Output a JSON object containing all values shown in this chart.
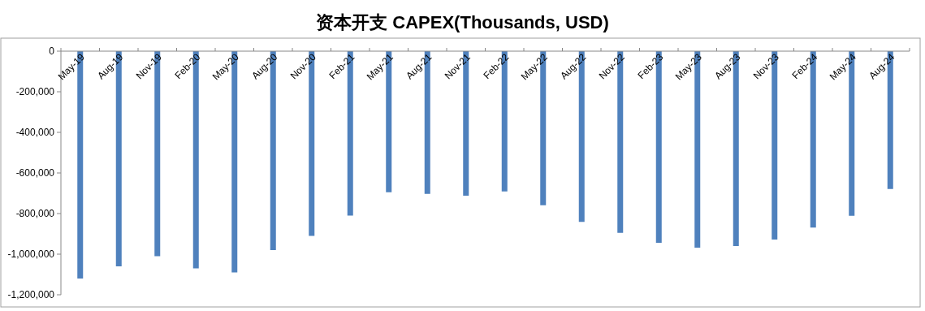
{
  "chart_data": {
    "type": "bar",
    "title": "资本开支 CAPEX(Thousands, USD)",
    "categories": [
      "May-19",
      "Aug-19",
      "Nov-19",
      "Feb-20",
      "May-20",
      "Aug-20",
      "Nov-20",
      "Feb-21",
      "May-21",
      "Aug-21",
      "Nov-21",
      "Feb-22",
      "May-22",
      "Aug-22",
      "Nov-22",
      "Feb-23",
      "May-23",
      "Aug-23",
      "Nov-23",
      "Feb-24",
      "May-24",
      "Aug-24"
    ],
    "values": [
      -1120000,
      -1060000,
      -1010000,
      -1070000,
      -1090000,
      -980000,
      -910000,
      -810000,
      -695000,
      -703000,
      -712000,
      -691000,
      -759000,
      -841000,
      -895000,
      -944000,
      -968000,
      -960000,
      -928000,
      -869000,
      -811000,
      -679000
    ],
    "color": "#4f81bd",
    "ylim": [
      -1200000,
      0
    ],
    "yticks": [
      {
        "value": -1200000,
        "label": "-1,200,000"
      },
      {
        "value": -1000000,
        "label": "-1,000,000"
      },
      {
        "value": -800000,
        "label": "-800,000"
      },
      {
        "value": -600000,
        "label": "-600,000"
      },
      {
        "value": -400000,
        "label": "-400,000"
      },
      {
        "value": -200000,
        "label": "-200,000"
      },
      0
    ],
    "grid": false
  }
}
